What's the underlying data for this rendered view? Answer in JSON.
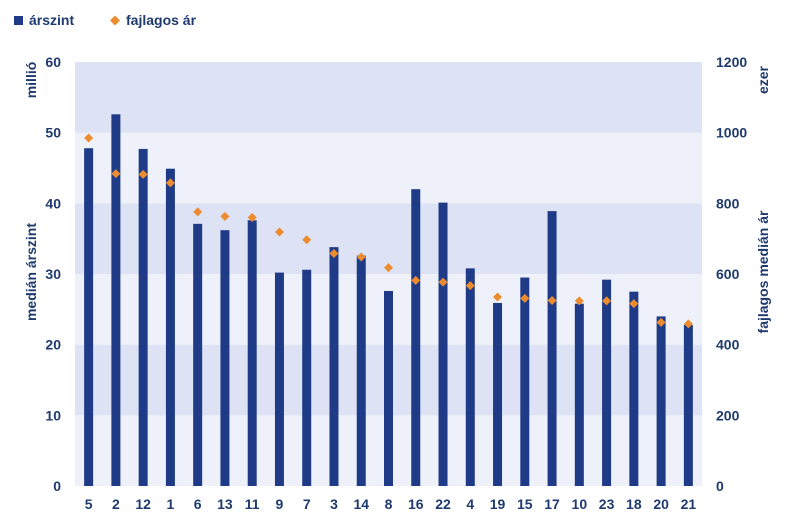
{
  "colors": {
    "bar": "#1f3b87",
    "marker": "#ed8b2f",
    "band_dark": "#dde3f4",
    "band_light": "#eef1fa",
    "text": "#1f3a6e"
  },
  "chart_data": {
    "type": "bar",
    "legend": {
      "position": "top-left",
      "entries": [
        {
          "label": "árszint",
          "marker": "square"
        },
        {
          "label": "fajlagos ár",
          "marker": "diamond"
        }
      ]
    },
    "unit_left": "millió",
    "unit_right": "ezer",
    "ylabel_left": "medián árszint",
    "ylabel_right": "fajlagos medián ár",
    "ylim_left": [
      0,
      60
    ],
    "ylim_right": [
      0,
      1200
    ],
    "yticks_left": [
      "0",
      "10",
      "20",
      "30",
      "40",
      "50",
      "60"
    ],
    "yticks_right": [
      "0",
      "200",
      "400",
      "600",
      "800",
      "1000",
      "1200"
    ],
    "categories": [
      "5",
      "2",
      "12",
      "1",
      "6",
      "13",
      "11",
      "9",
      "7",
      "3",
      "14",
      "8",
      "16",
      "22",
      "4",
      "19",
      "15",
      "17",
      "10",
      "23",
      "18",
      "20",
      "21"
    ],
    "series": [
      {
        "name": "árszint",
        "type": "bar",
        "axis": "left",
        "values": [
          47.8,
          52.6,
          47.7,
          44.9,
          37.1,
          36.2,
          37.6,
          30.2,
          30.6,
          33.8,
          32.6,
          27.6,
          42.0,
          40.1,
          30.8,
          25.9,
          29.5,
          38.9,
          25.8,
          29.2,
          27.5,
          24.0,
          22.8
        ]
      },
      {
        "name": "fajlagos ár",
        "type": "scatter",
        "axis": "right",
        "values": [
          985,
          884,
          882,
          858,
          776,
          763,
          760,
          719,
          697,
          658,
          648,
          618,
          582,
          577,
          567,
          535,
          531,
          525,
          524,
          524,
          516,
          463,
          459
        ]
      }
    ]
  }
}
